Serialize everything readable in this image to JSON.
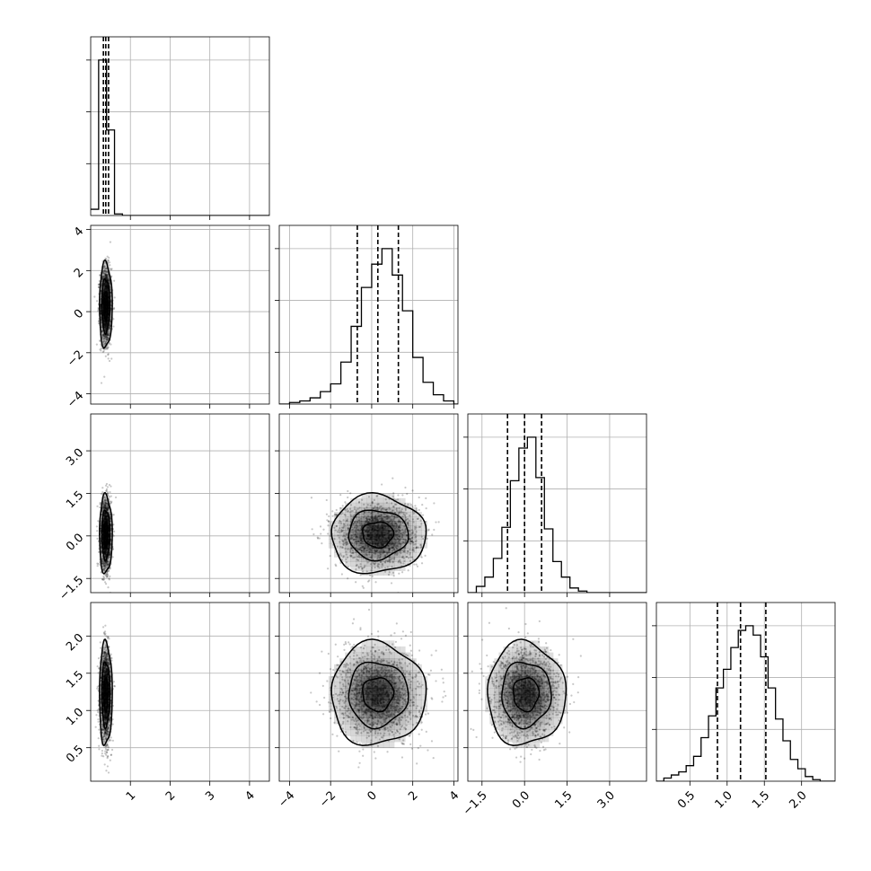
{
  "chart_data": {
    "type": "corner",
    "grid": true,
    "colors": {
      "marks": "#000000",
      "grid": "#b0b0b0",
      "density": "#000000"
    },
    "parameters": [
      {
        "range": [
          0.0,
          4.5
        ],
        "ticks": [
          1,
          2,
          3,
          4
        ],
        "tick_labels": [
          "1",
          "2",
          "3",
          "4"
        ]
      },
      {
        "range": [
          -4.5,
          4.2
        ],
        "ticks": [
          -4,
          -2,
          0,
          2,
          4
        ],
        "tick_labels": [
          "−4",
          "−2",
          "0",
          "2",
          "4"
        ]
      },
      {
        "range": [
          -2.0,
          4.3
        ],
        "ticks": [
          -1.5,
          0.0,
          1.5,
          3.0
        ],
        "tick_labels": [
          "−1.5",
          "0.0",
          "1.5",
          "3.0"
        ]
      },
      {
        "range": [
          0.05,
          2.45
        ],
        "ticks": [
          0.5,
          1.0,
          1.5,
          2.0
        ],
        "tick_labels": [
          "0.5",
          "1.0",
          "1.5",
          "2.0"
        ]
      }
    ],
    "histograms": [
      {
        "parameter": 0,
        "bin_edges": [
          0.0,
          0.2,
          0.4,
          0.6,
          0.8,
          1.0,
          4.5
        ],
        "counts": [
          0.04,
          1.0,
          0.55,
          0.01,
          0.0,
          0.0
        ],
        "quantiles": [
          0.32,
          0.38,
          0.45
        ]
      },
      {
        "parameter": 1,
        "bin_edges": [
          -4.5,
          -4.0,
          -3.5,
          -3.0,
          -2.5,
          -2.0,
          -1.5,
          -1.0,
          -0.5,
          0.0,
          0.5,
          1.0,
          1.5,
          2.0,
          2.5,
          3.0,
          3.5,
          4.0,
          4.2
        ],
        "counts": [
          0.0,
          0.01,
          0.02,
          0.04,
          0.08,
          0.13,
          0.27,
          0.5,
          0.75,
          0.9,
          1.0,
          0.83,
          0.6,
          0.3,
          0.14,
          0.06,
          0.02,
          0.0
        ],
        "quantiles": [
          -0.7,
          0.3,
          1.3
        ]
      },
      {
        "parameter": 2,
        "bin_edges": [
          -2.0,
          -1.7,
          -1.4,
          -1.1,
          -0.8,
          -0.5,
          -0.2,
          0.1,
          0.4,
          0.7,
          1.0,
          1.3,
          1.6,
          1.9,
          2.2,
          4.3
        ],
        "counts": [
          0.0,
          0.04,
          0.1,
          0.22,
          0.42,
          0.72,
          0.93,
          1.0,
          0.74,
          0.41,
          0.2,
          0.1,
          0.03,
          0.01,
          0.0
        ],
        "quantiles": [
          -0.6,
          0.0,
          0.6
        ]
      },
      {
        "parameter": 3,
        "bin_edges": [
          0.05,
          0.15,
          0.25,
          0.35,
          0.45,
          0.55,
          0.65,
          0.75,
          0.85,
          0.95,
          1.05,
          1.15,
          1.25,
          1.35,
          1.45,
          1.55,
          1.65,
          1.75,
          1.85,
          1.95,
          2.05,
          2.15,
          2.25,
          2.45
        ],
        "counts": [
          0.0,
          0.02,
          0.04,
          0.06,
          0.1,
          0.16,
          0.28,
          0.42,
          0.6,
          0.72,
          0.86,
          0.97,
          1.0,
          0.94,
          0.8,
          0.6,
          0.4,
          0.26,
          0.14,
          0.08,
          0.03,
          0.01,
          0.0
        ],
        "quantiles": [
          0.87,
          1.18,
          1.52
        ]
      }
    ],
    "joint_distributions": [
      {
        "x_param": 0,
        "y_param": 1,
        "center": [
          0.38,
          0.3
        ],
        "spread": [
          0.07,
          0.9
        ],
        "contour_radii": [
          0.75,
          1.45,
          2.3
        ]
      },
      {
        "x_param": 0,
        "y_param": 2,
        "center": [
          0.38,
          0.05
        ],
        "spread": [
          0.07,
          0.6
        ],
        "contour_radii": [
          0.75,
          1.45,
          2.3
        ]
      },
      {
        "x_param": 0,
        "y_param": 3,
        "center": [
          0.38,
          1.22
        ],
        "spread": [
          0.07,
          0.3
        ],
        "contour_radii": [
          0.75,
          1.45,
          2.3
        ]
      },
      {
        "x_param": 1,
        "y_param": 2,
        "center": [
          0.3,
          0.05
        ],
        "spread": [
          1.0,
          0.6
        ],
        "contour_radii": [
          0.75,
          1.45,
          2.3
        ]
      },
      {
        "x_param": 1,
        "y_param": 3,
        "center": [
          0.3,
          1.22
        ],
        "spread": [
          1.0,
          0.3
        ],
        "contour_radii": [
          0.75,
          1.45,
          2.3
        ]
      },
      {
        "x_param": 2,
        "y_param": 3,
        "center": [
          0.05,
          1.22
        ],
        "spread": [
          0.6,
          0.3
        ],
        "contour_radii": [
          0.75,
          1.45,
          2.3
        ]
      }
    ]
  }
}
